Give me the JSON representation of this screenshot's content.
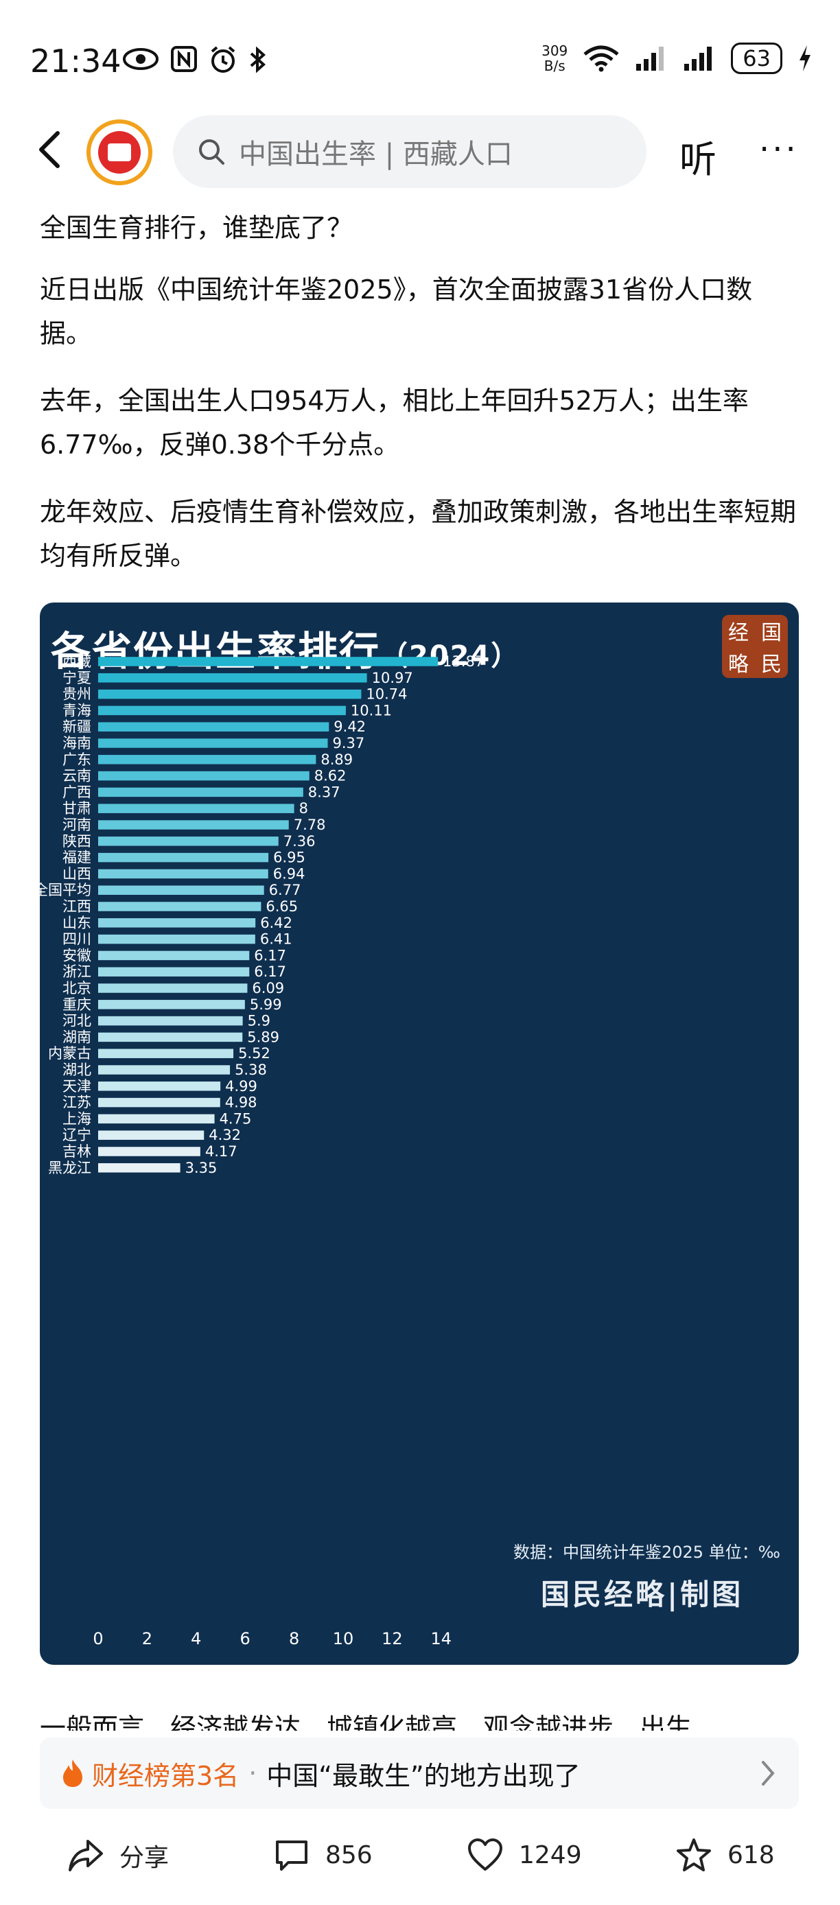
{
  "status_bar": {
    "time": "21:34",
    "net_speed_value": "309",
    "net_speed_unit": "B/s",
    "battery": "63",
    "icons": [
      "eye-icon",
      "nfc-icon",
      "alarm-icon",
      "bluetooth-icon",
      "wifi-icon",
      "signal-icon",
      "signal-icon",
      "charging-icon"
    ]
  },
  "nav": {
    "search_placeholder": "中国出生率 | 西藏人口",
    "listen_label": "听",
    "more_label": "···"
  },
  "article": {
    "title": "全国生育排行，谁垫底了？",
    "paragraphs": [
      "近日出版《中国统计年鉴2025》，首次全面披露31省份人口数据。",
      "去年，全国出生人口954万人，相比上年回升52万人；出生率6.77‰，反弹0.38个千分点。",
      "龙年效应、后疫情生育补偿效应，叠加政策刺激，各地出生率短期均有所反弹。"
    ],
    "continued": "一般而言，经济越发达，城镇化越高，观念越进步，出生"
  },
  "chart": {
    "title": "各省份出生率排行",
    "subtitle": "（2024）",
    "logo_chars": [
      "经",
      "国",
      "略",
      "民"
    ],
    "source_note": "数据：中国统计年鉴2025 单位：‰",
    "brand": "国民经略|制图",
    "bar_color_top": "#22b4cf",
    "bar_color_bottom": "#e8f2f6"
  },
  "chart_data": {
    "type": "bar",
    "orientation": "horizontal",
    "title": "各省份出生率排行（2024）",
    "categories": [
      "西藏",
      "宁夏",
      "贵州",
      "青海",
      "新疆",
      "海南",
      "广东",
      "云南",
      "广西",
      "甘肃",
      "河南",
      "陕西",
      "福建",
      "山西",
      "全国平均",
      "江西",
      "山东",
      "四川",
      "安徽",
      "浙江",
      "北京",
      "重庆",
      "河北",
      "湖南",
      "内蒙古",
      "湖北",
      "天津",
      "江苏",
      "上海",
      "辽宁",
      "吉林",
      "黑龙江"
    ],
    "values": [
      13.87,
      10.97,
      10.74,
      10.11,
      9.42,
      9.37,
      8.89,
      8.62,
      8.37,
      8,
      7.78,
      7.36,
      6.95,
      6.94,
      6.77,
      6.65,
      6.42,
      6.41,
      6.17,
      6.17,
      6.09,
      5.99,
      5.9,
      5.89,
      5.52,
      5.38,
      4.99,
      4.98,
      4.75,
      4.32,
      4.17,
      3.35
    ],
    "value_labels": [
      "13.87",
      "10.97",
      "10.74",
      "10.11",
      "9.42",
      "9.37",
      "8.89",
      "8.62",
      "8.37",
      "8",
      "7.78",
      "7.36",
      "6.95",
      "6.94",
      "6.77",
      "6.65",
      "6.42",
      "6.41",
      "6.17",
      "6.17",
      "6.09",
      "5.99",
      "5.9",
      "5.89",
      "5.52",
      "5.38",
      "4.99",
      "4.98",
      "4.75",
      "4.32",
      "4.17",
      "3.35"
    ],
    "xlim": [
      0,
      14
    ],
    "xticks": [
      "0",
      "2",
      "4",
      "6",
      "8",
      "10",
      "12",
      "14"
    ],
    "grid": false,
    "legend": "none"
  },
  "rank_banner": {
    "label": "财经榜第3名",
    "separator": "·",
    "text": "中国“最敢生”的地方出现了"
  },
  "actions": {
    "share_label": "分享",
    "comments": "856",
    "likes": "1249",
    "favorites": "618"
  }
}
